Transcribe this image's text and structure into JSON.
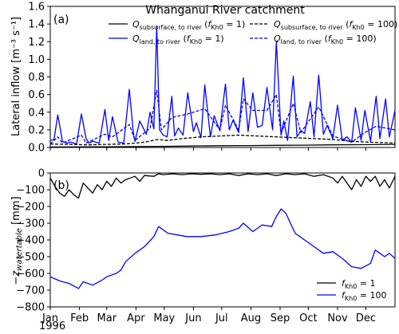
{
  "figure_title": "Whanganui River catchment",
  "colors": {
    "black": "#000000",
    "blue": "#0000ff"
  },
  "chart_data": [
    {
      "panel_label": "(a)",
      "type": "line",
      "ylabel": "Lateral inflow [m⁻³ s⁻¹]",
      "ylim": [
        0.0,
        1.6
      ],
      "yticks": [
        0.0,
        0.2,
        0.4,
        0.6,
        0.8,
        1.0,
        1.2,
        1.4,
        1.6
      ],
      "ytick_labels": [
        "0.0",
        "0.2",
        "0.4",
        "0.6",
        "0.8",
        "1.0",
        "1.2",
        "1.4",
        "1.6"
      ],
      "xlim": [
        0,
        366
      ],
      "legend_position": "top",
      "series": [
        {
          "name": "Q_subsurface,to river (f_Kh0 = 1)",
          "legend": {
            "sym": "Q",
            "sub": "subsurface, to river",
            "arg": "Kh0",
            "val": "1"
          },
          "color": "#000000",
          "style": "solid",
          "x": [
            0,
            30,
            60,
            90,
            120,
            150,
            180,
            210,
            240,
            270,
            300,
            330,
            366
          ],
          "y": [
            0.005,
            0.006,
            0.008,
            0.01,
            0.013,
            0.016,
            0.02,
            0.022,
            0.024,
            0.026,
            0.03,
            0.032,
            0.035
          ]
        },
        {
          "name": "Q_land,to river (f_Kh0 = 1)",
          "legend": {
            "sym": "Q",
            "sub": "land, to river",
            "arg": "Kh0",
            "val": "1"
          },
          "color": "#0000ff",
          "style": "solid",
          "x": [
            0,
            4,
            8,
            10,
            13,
            18,
            22,
            28,
            33,
            38,
            41,
            45,
            52,
            58,
            62,
            66,
            72,
            78,
            84,
            88,
            90,
            95,
            102,
            106,
            110,
            113,
            116,
            120,
            124,
            129,
            132,
            136,
            141,
            146,
            152,
            155,
            160,
            164,
            170,
            174,
            180,
            186,
            190,
            194,
            200,
            205,
            210,
            215,
            220,
            225,
            230,
            236,
            240,
            245,
            248,
            252,
            258,
            262,
            266,
            270,
            276,
            280,
            285,
            290,
            294,
            300,
            305,
            310,
            315,
            320,
            324,
            330,
            334,
            340,
            346,
            350,
            356,
            360,
            366
          ],
          "y": [
            0.08,
            0.09,
            0.37,
            0.25,
            0.07,
            0.05,
            0.06,
            0.04,
            0.38,
            0.1,
            0.05,
            0.07,
            0.05,
            0.43,
            0.08,
            0.35,
            0.06,
            0.05,
            0.66,
            0.18,
            0.07,
            0.3,
            0.15,
            0.4,
            0.21,
            1.38,
            0.2,
            0.14,
            0.12,
            0.58,
            0.13,
            0.22,
            0.14,
            0.62,
            0.18,
            0.28,
            0.11,
            0.71,
            0.12,
            0.36,
            0.19,
            0.72,
            0.2,
            0.31,
            0.17,
            0.79,
            0.18,
            0.62,
            0.23,
            0.25,
            0.68,
            0.2,
            1.2,
            0.14,
            0.3,
            0.08,
            0.81,
            0.12,
            0.19,
            0.16,
            0.52,
            0.12,
            0.82,
            0.15,
            0.25,
            0.1,
            0.48,
            0.08,
            0.12,
            0.06,
            0.45,
            0.08,
            0.42,
            0.07,
            0.58,
            0.1,
            0.55,
            0.12,
            0.42
          ]
        },
        {
          "name": "Q_subsurface,to river (f_Kh0 = 100)",
          "legend": {
            "sym": "Q",
            "sub": "subsurface, to river",
            "arg": "Kh0",
            "val": "100"
          },
          "color": "#000000",
          "style": "dashed",
          "x": [
            0,
            20,
            40,
            60,
            80,
            100,
            114,
            125,
            140,
            160,
            180,
            200,
            220,
            240,
            260,
            280,
            300,
            320,
            340,
            366
          ],
          "y": [
            0.04,
            0.035,
            0.03,
            0.035,
            0.04,
            0.06,
            0.09,
            0.08,
            0.1,
            0.12,
            0.13,
            0.14,
            0.13,
            0.12,
            0.11,
            0.1,
            0.09,
            0.07,
            0.06,
            0.05
          ]
        },
        {
          "name": "Q_land,to river (f_Kh0 = 100)",
          "legend": {
            "sym": "Q",
            "sub": "land, to river",
            "arg": "Kh0",
            "val": "100"
          },
          "color": "#0000ff",
          "style": "dashed",
          "x": [
            0,
            8,
            13,
            33,
            38,
            58,
            66,
            84,
            90,
            106,
            113,
            118,
            129,
            146,
            164,
            180,
            186,
            200,
            205,
            215,
            230,
            240,
            245,
            258,
            266,
            285,
            300,
            320,
            334,
            346,
            356,
            366
          ],
          "y": [
            0.04,
            0.12,
            0.05,
            0.14,
            0.05,
            0.15,
            0.12,
            0.26,
            0.08,
            0.22,
            0.65,
            0.2,
            0.34,
            0.38,
            0.44,
            0.2,
            0.48,
            0.2,
            0.55,
            0.42,
            0.42,
            0.6,
            0.16,
            0.5,
            0.17,
            0.46,
            0.13,
            0.06,
            0.17,
            0.24,
            0.22,
            0.2
          ]
        }
      ]
    },
    {
      "panel_label": "(b)",
      "type": "line",
      "ylabel": "−z_watertable [mm]",
      "ylabel_parts": {
        "main": "−z",
        "sub": "watertable",
        "unit": " [mm]"
      },
      "ylim": [
        -800,
        0
      ],
      "yticks": [
        0,
        -100,
        -200,
        -300,
        -400,
        -500,
        -600,
        -700,
        -800
      ],
      "ytick_labels": [
        "0",
        "−100",
        "−200",
        "−300",
        "−400",
        "−500",
        "−600",
        "−700",
        "−800"
      ],
      "xlim": [
        0,
        366
      ],
      "x_ticks": [
        0,
        31,
        60,
        91,
        121,
        152,
        182,
        213,
        244,
        274,
        305,
        335
      ],
      "x_tick_labels": [
        "Jan",
        "Feb",
        "Mar",
        "Apr",
        "May",
        "Jun",
        "Jul",
        "Aug",
        "Sep",
        "Oct",
        "Nov",
        "Dec"
      ],
      "x_year_label": "1996",
      "legend_position": "lower right",
      "series": [
        {
          "name": "f_Kh0 = 1",
          "legend": {
            "sym": "f",
            "sub": "Kh0",
            "val": "1"
          },
          "color": "#000000",
          "style": "solid",
          "x": [
            0,
            5,
            10,
            15,
            20,
            25,
            30,
            35,
            40,
            45,
            50,
            55,
            60,
            65,
            70,
            75,
            80,
            85,
            90,
            95,
            100,
            110,
            115,
            120,
            130,
            140,
            150,
            160,
            170,
            180,
            190,
            200,
            210,
            220,
            230,
            240,
            250,
            260,
            270,
            280,
            290,
            300,
            305,
            310,
            315,
            320,
            325,
            330,
            335,
            340,
            345,
            350,
            355,
            360,
            366
          ],
          "y": [
            -30,
            -80,
            -120,
            -140,
            -100,
            -130,
            -150,
            -60,
            -90,
            -120,
            -70,
            -100,
            -50,
            -80,
            -30,
            -60,
            -40,
            -30,
            -20,
            -50,
            -15,
            -20,
            -5,
            -10,
            -5,
            -10,
            -5,
            -8,
            -5,
            -10,
            -5,
            -15,
            -5,
            -10,
            -5,
            -15,
            -5,
            -10,
            -5,
            -20,
            -10,
            -30,
            -60,
            -20,
            -60,
            -100,
            -40,
            -80,
            -20,
            -50,
            -20,
            -80,
            -40,
            -90,
            -20
          ]
        },
        {
          "name": "f_Kh0 = 100",
          "legend": {
            "sym": "f",
            "sub": "Kh0",
            "val": "100"
          },
          "color": "#0000ff",
          "style": "solid",
          "x": [
            0,
            10,
            20,
            30,
            35,
            45,
            55,
            60,
            70,
            75,
            80,
            90,
            100,
            110,
            115,
            125,
            135,
            145,
            160,
            175,
            190,
            200,
            205,
            215,
            225,
            235,
            240,
            245,
            250,
            255,
            260,
            270,
            280,
            290,
            300,
            310,
            320,
            330,
            340,
            345,
            350,
            355,
            360,
            366
          ],
          "y": [
            -620,
            -645,
            -660,
            -690,
            -650,
            -670,
            -640,
            -620,
            -600,
            -580,
            -530,
            -480,
            -440,
            -380,
            -320,
            -360,
            -370,
            -380,
            -380,
            -370,
            -350,
            -330,
            -300,
            -350,
            -310,
            -320,
            -260,
            -215,
            -240,
            -300,
            -360,
            -400,
            -440,
            -480,
            -470,
            -510,
            -560,
            -570,
            -540,
            -460,
            -480,
            -500,
            -480,
            -510
          ]
        }
      ]
    }
  ]
}
